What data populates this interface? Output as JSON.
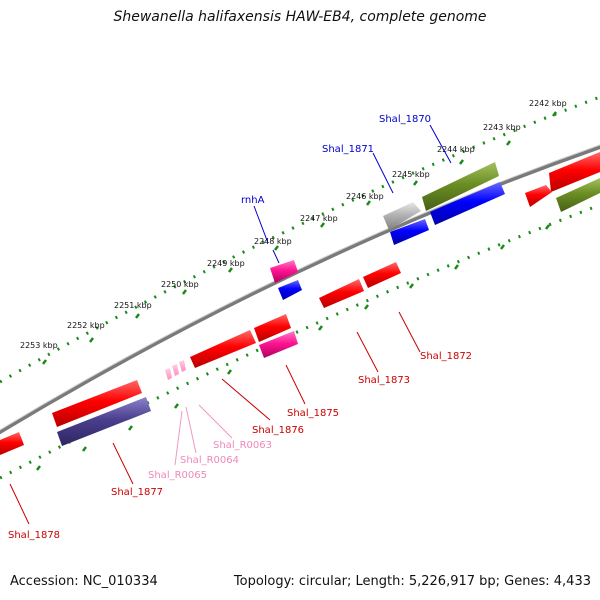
{
  "title": "Shewanella halifaxensis HAW-EB4, complete genome",
  "footer": {
    "accession": "Accession: NC_010334",
    "summary": "Topology: circular; Length: 5,226,917 bp; Genes: 4,433"
  },
  "ticks": [
    {
      "label": "2242 kbp"
    },
    {
      "label": "2243 kbp"
    },
    {
      "label": "2244 kbp"
    },
    {
      "label": "2245 kbp"
    },
    {
      "label": "2246 kbp"
    },
    {
      "label": "2247 kbp"
    },
    {
      "label": "2248 kbp"
    },
    {
      "label": "2249 kbp"
    },
    {
      "label": "2250 kbp"
    },
    {
      "label": "2251 kbp"
    },
    {
      "label": "2252 kbp"
    },
    {
      "label": "2253 kbp"
    }
  ],
  "features": [
    {
      "name": "Shal_1870",
      "type": "gene",
      "color": "#0000ff"
    },
    {
      "name": "Shal_1871",
      "type": "gene",
      "color": "#0000ff"
    },
    {
      "name": "rnhA",
      "type": "gene",
      "color": "#0000ff"
    },
    {
      "name": "Shal_1872",
      "type": "gene",
      "color": "#cc0000"
    },
    {
      "name": "Shal_1873",
      "type": "gene",
      "color": "#cc0000"
    },
    {
      "name": "Shal_1875",
      "type": "gene",
      "color": "#cc0000"
    },
    {
      "name": "Shal_1876",
      "type": "gene",
      "color": "#cc0000"
    },
    {
      "name": "Shal_R0063",
      "type": "tRNA",
      "color": "#ee88bb"
    },
    {
      "name": "Shal_R0064",
      "type": "tRNA",
      "color": "#ee88bb"
    },
    {
      "name": "Shal_R0065",
      "type": "tRNA",
      "color": "#ee88bb"
    },
    {
      "name": "Shal_1877",
      "type": "gene",
      "color": "#cc0000"
    },
    {
      "name": "Shal_1878",
      "type": "gene",
      "color": "#cc0000"
    }
  ],
  "colors": {
    "forward_cds": "#ff0000",
    "reverse_cds": "#ff0000",
    "cog_blue": "#0000ff",
    "cog_green": "#6b8e23",
    "cog_magenta": "#ff1493",
    "cog_gray": "#b0b0b0",
    "cog_slate": "#4b3f8f",
    "trna": "#ff9ec8",
    "backbone": "#888888",
    "tick_dots": "#228b22"
  }
}
